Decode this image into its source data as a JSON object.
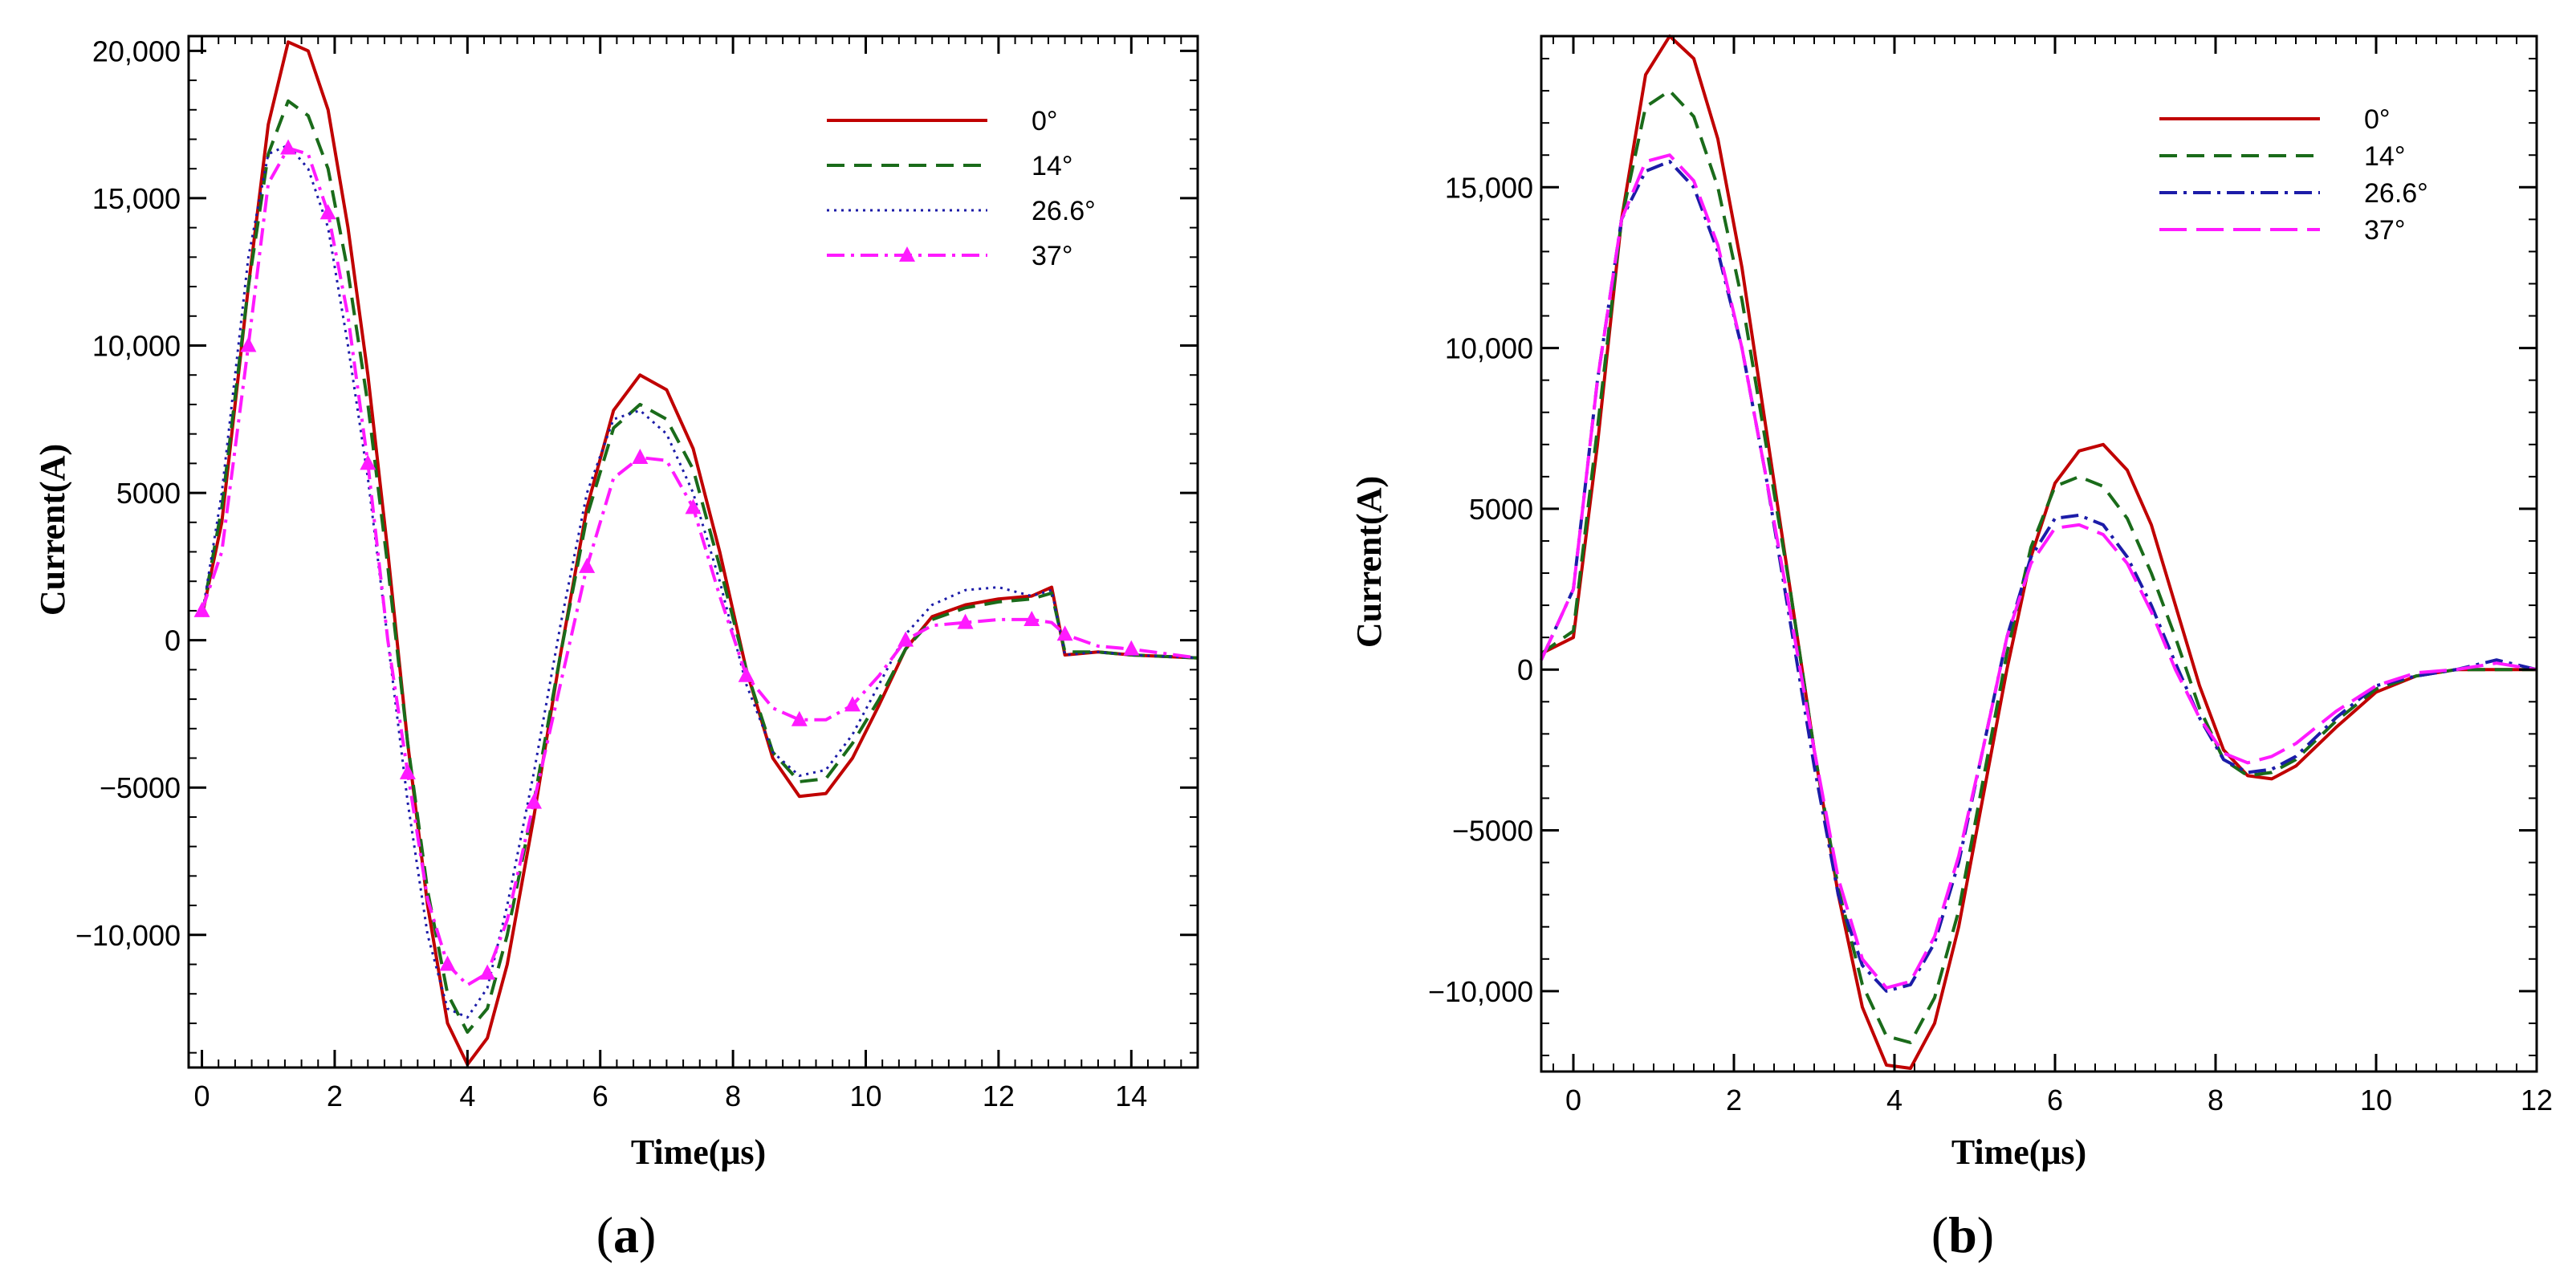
{
  "colors": {
    "0deg": "#c00000",
    "14deg": "#1a6b1a",
    "26_6deg": "#1c1ca8",
    "37deg": "#ff1aff",
    "axis": "#000000"
  },
  "chart_data": [
    {
      "id": "a",
      "type": "line",
      "panel_label": "(a)",
      "caption_prefix": "(",
      "caption_letter": "a",
      "caption_suffix": ")",
      "xlabel": "Time(μs)",
      "ylabel": "Current(A)",
      "xlim": [
        -0.2,
        15
      ],
      "ylim": [
        -14500,
        20500
      ],
      "xticks": [
        0,
        2,
        4,
        6,
        8,
        10,
        12,
        14
      ],
      "xtick_labels": [
        "0",
        "2",
        "4",
        "6",
        "8",
        "10",
        "12",
        "14"
      ],
      "yticks": [
        -10000,
        -5000,
        0,
        5000,
        10000,
        15000,
        20000
      ],
      "ytick_labels": [
        "−10,000",
        "−5000",
        "0",
        "5000",
        "10,000",
        "15,000",
        "20,000"
      ],
      "legend_position": "top-right",
      "series": [
        {
          "name": "0°",
          "key": "0deg",
          "style": "solid",
          "marker": false,
          "x": [
            0,
            0.3,
            0.7,
            1.0,
            1.3,
            1.6,
            1.9,
            2.2,
            2.5,
            2.8,
            3.1,
            3.4,
            3.7,
            4.0,
            4.3,
            4.6,
            5.0,
            5.4,
            5.8,
            6.2,
            6.6,
            7.0,
            7.4,
            7.8,
            8.2,
            8.6,
            9.0,
            9.4,
            9.8,
            10.2,
            10.6,
            11.0,
            11.5,
            12.0,
            12.5,
            12.8,
            13.0,
            13.5,
            14.0,
            15.0
          ],
          "y": [
            800,
            4000,
            12000,
            17500,
            20300,
            20000,
            18000,
            14000,
            9000,
            3000,
            -3500,
            -9000,
            -13000,
            -14400,
            -13500,
            -11000,
            -6000,
            -500,
            4500,
            7800,
            9000,
            8500,
            6500,
            3000,
            -1000,
            -4000,
            -5300,
            -5200,
            -4000,
            -2200,
            -300,
            800,
            1200,
            1400,
            1500,
            1800,
            -500,
            -400,
            -500,
            -600
          ]
        },
        {
          "name": "14°",
          "key": "14deg",
          "style": "dashed",
          "marker": false,
          "x": [
            0,
            0.3,
            0.7,
            1.0,
            1.3,
            1.6,
            1.9,
            2.2,
            2.5,
            2.8,
            3.1,
            3.4,
            3.7,
            4.0,
            4.3,
            4.6,
            5.0,
            5.4,
            5.8,
            6.2,
            6.6,
            7.0,
            7.4,
            7.8,
            8.2,
            8.6,
            9.0,
            9.4,
            9.8,
            10.2,
            10.6,
            11.0,
            11.5,
            12.0,
            12.5,
            12.8,
            13.0,
            13.5,
            14.0,
            15.0
          ],
          "y": [
            800,
            4500,
            12000,
            16500,
            18300,
            17800,
            16000,
            12500,
            8000,
            2500,
            -3500,
            -8500,
            -12000,
            -13300,
            -12500,
            -10000,
            -5500,
            -500,
            4200,
            7200,
            8000,
            7500,
            5800,
            2500,
            -1000,
            -3800,
            -4800,
            -4700,
            -3500,
            -2000,
            -300,
            700,
            1100,
            1300,
            1400,
            1600,
            -400,
            -400,
            -500,
            -600
          ]
        },
        {
          "name": "26.6°",
          "key": "26_6deg",
          "style": "dotted",
          "marker": false,
          "x": [
            0,
            0.3,
            0.7,
            1.0,
            1.3,
            1.6,
            1.9,
            2.2,
            2.5,
            2.8,
            3.1,
            3.4,
            3.7,
            4.0,
            4.3,
            4.6,
            5.0,
            5.4,
            5.8,
            6.2,
            6.6,
            7.0,
            7.4,
            7.8,
            8.2,
            8.6,
            9.0,
            9.4,
            9.8,
            10.2,
            10.6,
            11.0,
            11.5,
            12.0,
            12.5,
            12.8,
            13.0,
            13.5,
            14.0,
            15.0
          ],
          "y": [
            800,
            5000,
            13000,
            16500,
            16800,
            16000,
            14000,
            10000,
            5500,
            0,
            -5500,
            -10000,
            -12500,
            -12800,
            -11800,
            -9000,
            -4500,
            500,
            5000,
            7500,
            7800,
            7000,
            5000,
            2000,
            -1500,
            -3800,
            -4600,
            -4400,
            -3200,
            -1500,
            200,
            1200,
            1700,
            1800,
            1500,
            1700,
            -500,
            -400,
            -500,
            -600
          ]
        },
        {
          "name": "37°",
          "key": "37deg",
          "style": "dashdot",
          "marker": true,
          "x": [
            0,
            0.3,
            0.7,
            1.0,
            1.3,
            1.6,
            1.9,
            2.2,
            2.5,
            2.8,
            3.1,
            3.4,
            3.7,
            4.0,
            4.3,
            4.6,
            5.0,
            5.4,
            5.8,
            6.2,
            6.6,
            7.0,
            7.4,
            7.8,
            8.2,
            8.6,
            9.0,
            9.4,
            9.8,
            10.2,
            10.6,
            11.0,
            11.5,
            12.0,
            12.5,
            12.8,
            13.0,
            13.5,
            14.0,
            15.0
          ],
          "y": [
            1000,
            3000,
            10000,
            15500,
            16700,
            16500,
            14500,
            11000,
            6000,
            0,
            -4500,
            -8800,
            -11000,
            -11700,
            -11300,
            -9500,
            -5500,
            -1500,
            2500,
            5500,
            6200,
            6100,
            4500,
            1500,
            -1200,
            -2300,
            -2700,
            -2700,
            -2200,
            -1200,
            0,
            500,
            600,
            700,
            700,
            600,
            200,
            -200,
            -300,
            -600
          ]
        }
      ]
    },
    {
      "id": "b",
      "type": "line",
      "panel_label": "(b)",
      "caption_prefix": "(",
      "caption_letter": "b",
      "caption_suffix": ")",
      "xlabel": "Time(μs)",
      "ylabel": "Current(A)",
      "xlim": [
        -0.4,
        12
      ],
      "ylim": [
        -12500,
        19700
      ],
      "xticks": [
        0,
        2,
        4,
        6,
        8,
        10,
        12
      ],
      "xtick_labels": [
        "0",
        "2",
        "4",
        "6",
        "8",
        "10",
        "12"
      ],
      "yticks": [
        -10000,
        -5000,
        0,
        5000,
        10000,
        15000
      ],
      "ytick_labels": [
        "−10,000",
        "−5000",
        "0",
        "5000",
        "10,000",
        "15,000"
      ],
      "legend_position": "top-right",
      "series": [
        {
          "name": "0°",
          "key": "0deg",
          "style": "solid",
          "marker": false,
          "x": [
            -0.4,
            0,
            0.3,
            0.6,
            0.9,
            1.2,
            1.5,
            1.8,
            2.1,
            2.4,
            2.7,
            3.0,
            3.3,
            3.6,
            3.9,
            4.2,
            4.5,
            4.8,
            5.1,
            5.4,
            5.7,
            6.0,
            6.3,
            6.6,
            6.9,
            7.2,
            7.5,
            7.8,
            8.1,
            8.4,
            8.7,
            9.0,
            9.5,
            10.0,
            10.5,
            11.0,
            11.5,
            12.0
          ],
          "y": [
            500,
            1000,
            7000,
            14000,
            18500,
            19700,
            19000,
            16500,
            12500,
            7500,
            2500,
            -2500,
            -7000,
            -10500,
            -12300,
            -12400,
            -11000,
            -8000,
            -4000,
            0,
            3500,
            5800,
            6800,
            7000,
            6200,
            4500,
            2000,
            -500,
            -2500,
            -3300,
            -3400,
            -3000,
            -1800,
            -700,
            -200,
            0,
            0,
            0
          ]
        },
        {
          "name": "14°",
          "key": "14deg",
          "style": "dashed",
          "marker": false,
          "x": [
            -0.4,
            0,
            0.3,
            0.6,
            0.9,
            1.2,
            1.5,
            1.8,
            2.1,
            2.4,
            2.7,
            3.0,
            3.3,
            3.6,
            3.9,
            4.2,
            4.5,
            4.8,
            5.1,
            5.4,
            5.7,
            6.0,
            6.3,
            6.6,
            6.9,
            7.2,
            7.5,
            7.8,
            8.1,
            8.4,
            8.7,
            9.0,
            9.5,
            10.0,
            10.5,
            11.0,
            11.5,
            12.0
          ],
          "y": [
            500,
            1200,
            7500,
            14000,
            17500,
            18000,
            17200,
            15000,
            11500,
            7000,
            2500,
            -2500,
            -6800,
            -9800,
            -11400,
            -11600,
            -10200,
            -7500,
            -3500,
            500,
            3800,
            5700,
            6000,
            5700,
            4700,
            3000,
            1000,
            -1200,
            -2800,
            -3300,
            -3200,
            -2800,
            -1600,
            -600,
            -200,
            0,
            0,
            0
          ]
        },
        {
          "name": "26.6°",
          "key": "26_6deg",
          "style": "dashdot",
          "marker": false,
          "x": [
            -0.4,
            0,
            0.3,
            0.6,
            0.9,
            1.2,
            1.5,
            1.8,
            2.1,
            2.4,
            2.7,
            3.0,
            3.3,
            3.6,
            3.9,
            4.2,
            4.5,
            4.8,
            5.1,
            5.4,
            5.7,
            6.0,
            6.3,
            6.6,
            6.9,
            7.2,
            7.5,
            7.8,
            8.1,
            8.4,
            8.7,
            9.0,
            9.5,
            10.0,
            10.5,
            11.0,
            11.5,
            12.0
          ],
          "y": [
            300,
            2500,
            9000,
            14000,
            15500,
            15800,
            15000,
            13000,
            10000,
            6000,
            1500,
            -3000,
            -7000,
            -9200,
            -10000,
            -9800,
            -8500,
            -6000,
            -2500,
            1000,
            3500,
            4700,
            4800,
            4500,
            3500,
            2000,
            200,
            -1500,
            -2800,
            -3200,
            -3100,
            -2700,
            -1500,
            -500,
            -200,
            0,
            300,
            0
          ]
        },
        {
          "name": "37°",
          "key": "37deg",
          "style": "longdash",
          "marker": false,
          "x": [
            -0.4,
            0,
            0.3,
            0.6,
            0.9,
            1.2,
            1.5,
            1.8,
            2.1,
            2.4,
            2.7,
            3.0,
            3.3,
            3.6,
            3.9,
            4.2,
            4.5,
            4.8,
            5.1,
            5.4,
            5.7,
            6.0,
            6.3,
            6.6,
            6.9,
            7.2,
            7.5,
            7.8,
            8.1,
            8.4,
            8.7,
            9.0,
            9.5,
            10.0,
            10.5,
            11.0,
            11.5,
            12.0
          ],
          "y": [
            300,
            2500,
            9000,
            14000,
            15800,
            16000,
            15200,
            13200,
            10000,
            6000,
            1800,
            -2500,
            -6500,
            -9000,
            -9900,
            -9700,
            -8300,
            -5800,
            -2500,
            1000,
            3300,
            4400,
            4500,
            4200,
            3300,
            1800,
            0,
            -1500,
            -2600,
            -2900,
            -2700,
            -2300,
            -1300,
            -500,
            -100,
            0,
            200,
            0
          ]
        }
      ]
    }
  ]
}
